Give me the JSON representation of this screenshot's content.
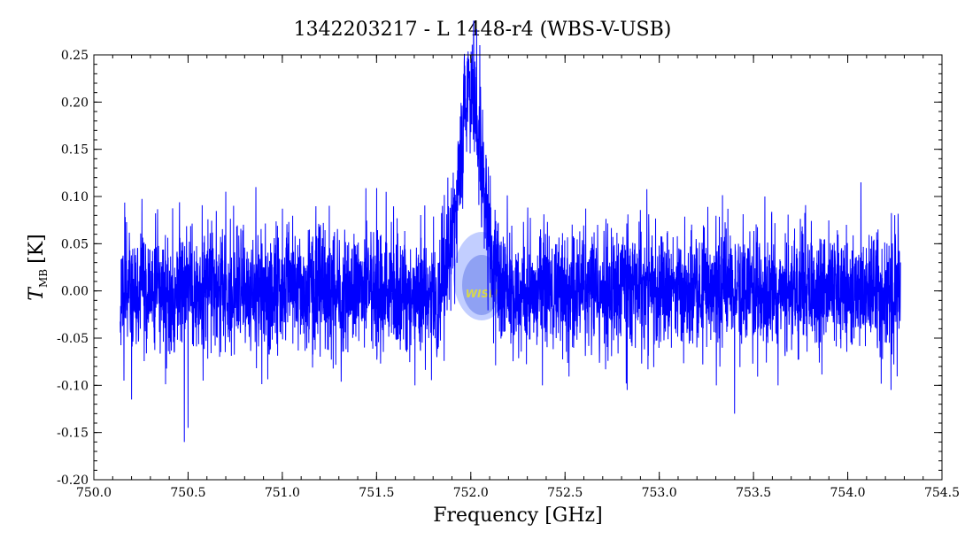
{
  "chart_data": {
    "type": "line",
    "title": "1342203217 - L 1448-r4 (WBS-V-USB)",
    "xlabel": "Frequency [GHz]",
    "ylabel_main": "T",
    "ylabel_sub": "MB",
    "ylabel_unit": "[K]",
    "xlim": [
      750.0,
      754.5
    ],
    "ylim": [
      -0.2,
      0.25
    ],
    "x_ticks": [
      750.0,
      750.5,
      751.0,
      751.5,
      752.0,
      752.5,
      753.0,
      753.5,
      754.0,
      754.5
    ],
    "x_tick_labels": [
      "750.0",
      "750.5",
      "751.0",
      "751.5",
      "752.0",
      "752.5",
      "753.0",
      "753.5",
      "754.0",
      "754.5"
    ],
    "y_ticks": [
      -0.2,
      -0.15,
      -0.1,
      -0.05,
      0.0,
      0.05,
      0.1,
      0.15,
      0.2,
      0.25
    ],
    "y_tick_labels": [
      "-0.20",
      "-0.15",
      "-0.10",
      "-0.05",
      "0.00",
      "0.05",
      "0.10",
      "0.15",
      "0.20",
      "0.25"
    ],
    "grid": false,
    "series_color": "#0000ff",
    "watermark": "WISH",
    "series": [
      {
        "x_start": 750.14,
        "x_end": 754.28,
        "noise_rms": 0.033,
        "line": {
          "center": 752.0,
          "peak": 0.215,
          "width": 0.06
        },
        "spikes": [
          {
            "x": 750.48,
            "y": -0.16
          },
          {
            "x": 750.5,
            "y": -0.145
          },
          {
            "x": 750.2,
            "y": -0.115
          },
          {
            "x": 750.16,
            "y": -0.095
          },
          {
            "x": 752.01,
            "y": 0.235
          },
          {
            "x": 753.4,
            "y": -0.13
          },
          {
            "x": 754.07,
            "y": 0.115
          },
          {
            "x": 754.23,
            "y": -0.105
          },
          {
            "x": 750.86,
            "y": 0.11
          },
          {
            "x": 750.7,
            "y": 0.105
          },
          {
            "x": 752.38,
            "y": -0.1
          },
          {
            "x": 752.83,
            "y": -0.105
          },
          {
            "x": 753.56,
            "y": 0.1
          },
          {
            "x": 753.63,
            "y": -0.1
          },
          {
            "x": 750.58,
            "y": -0.095
          },
          {
            "x": 751.85,
            "y": 0.09
          },
          {
            "x": 751.93,
            "y": 0.085
          }
        ]
      }
    ]
  }
}
